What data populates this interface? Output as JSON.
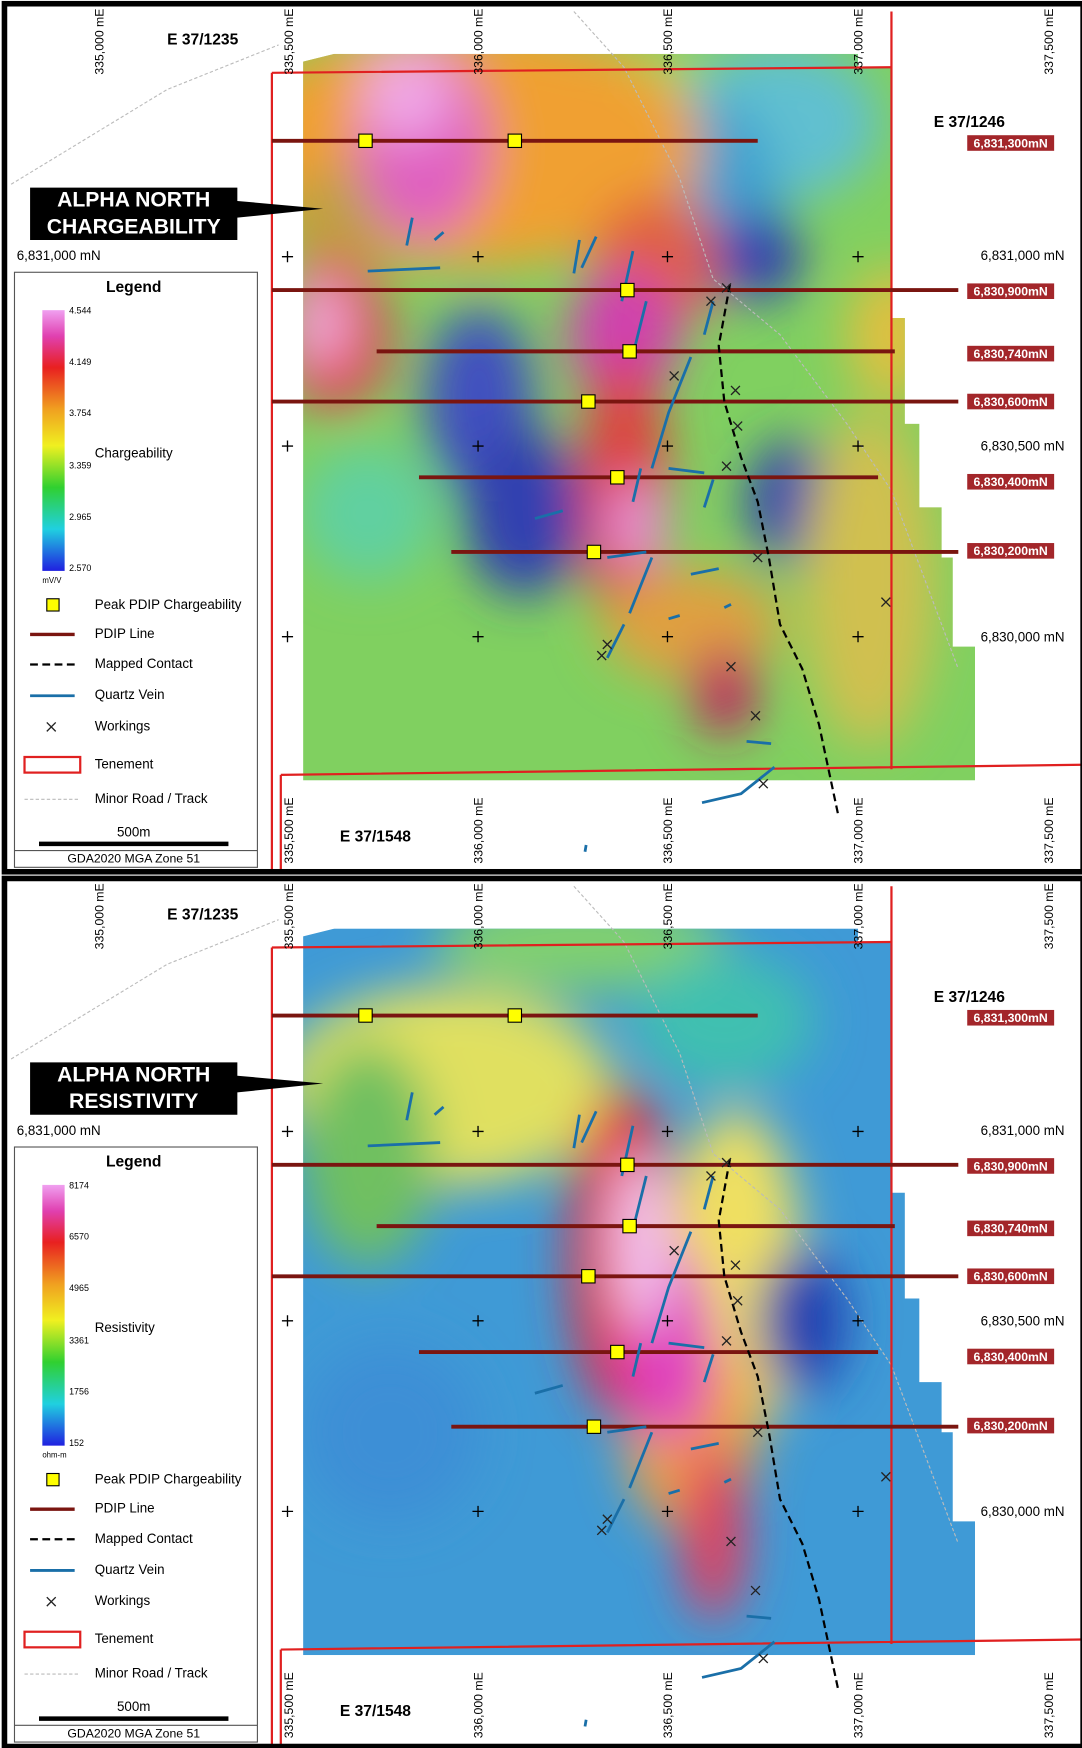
{
  "map": {
    "eastings_top": [
      "335,000 mE",
      "335,500 mE",
      "336,000 mE",
      "336,500 mE",
      "337,000 mE",
      "337,500 mE"
    ],
    "eastings_bottom": [
      "335,500 mE",
      "336,000 mE",
      "336,500 mE",
      "337,000 mE",
      "337,500 mE"
    ],
    "northing_left": "6,831,000 mN",
    "northings_right": [
      "6,831,000 mN",
      "6,830,500 mN",
      "6,830,000 mN"
    ],
    "tenements": [
      "E 37/1235",
      "E 37/1246",
      "E 37/1548"
    ],
    "line_labels": [
      "6,831,300mN",
      "6,830,900mN",
      "6,830,740mN",
      "6,830,600mN",
      "6,830,400mN",
      "6,830,200mN"
    ],
    "scale_bar": "500m",
    "datum": "GDA2020 MGA Zone 51",
    "legend_items": [
      "Peak PDIP Chargeability",
      "PDIP Line",
      "Mapped Contact",
      "Quartz Vein",
      "Workings",
      "Tenement",
      "Minor Road / Track"
    ]
  },
  "panels": [
    {
      "title": [
        "ALPHA NORTH",
        "CHARGEABILITY"
      ],
      "legend_title": "Legend",
      "scale_label": "Chargeability",
      "scale_ticks": [
        "4.544",
        "4.149",
        "3.754",
        "3.359",
        "2.965",
        "2.570"
      ],
      "unit": "mV/V"
    },
    {
      "title": [
        "ALPHA NORTH",
        "RESISTIVITY"
      ],
      "legend_title": "Legend",
      "scale_label": "Resistivity",
      "scale_ticks": [
        "8174",
        "6570",
        "4965",
        "3361",
        "1756",
        "152"
      ],
      "unit": "ohm-m"
    }
  ]
}
